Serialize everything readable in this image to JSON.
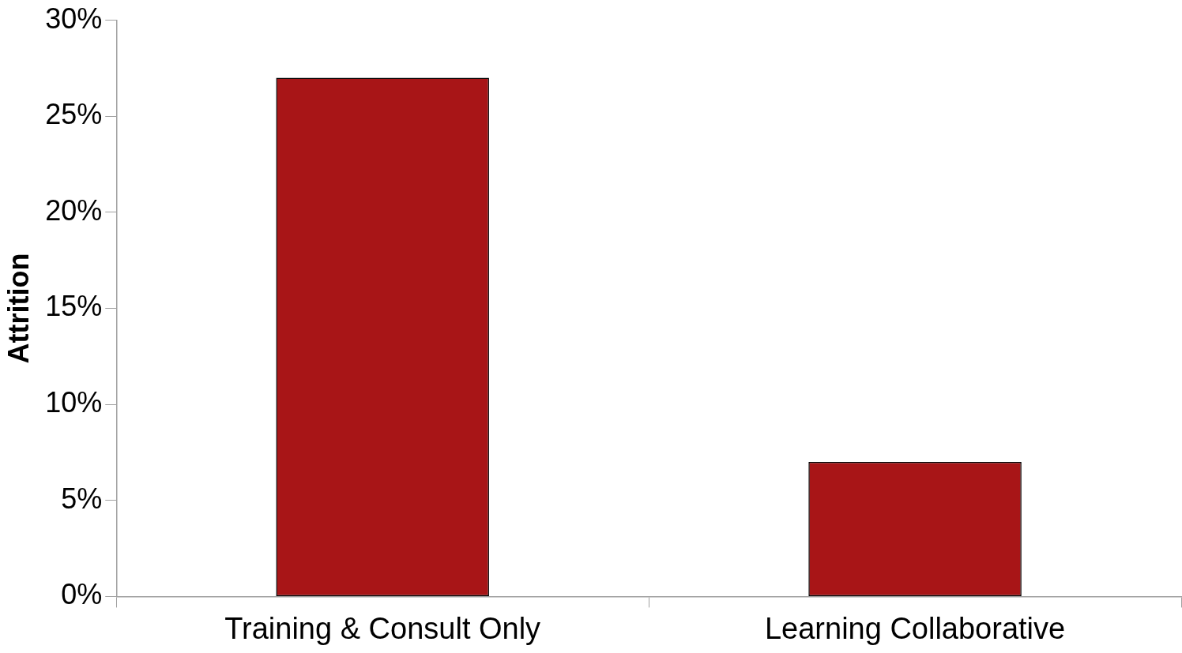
{
  "chart_data": {
    "type": "bar",
    "ylabel": "Attrition",
    "categories": [
      "Training & Consult Only",
      "Learning Collaborative"
    ],
    "values": [
      27,
      7
    ],
    "color": "#a81517",
    "ylim": [
      0,
      30
    ],
    "yticks": [
      {
        "value": 0,
        "label": "0%"
      },
      {
        "value": 5,
        "label": "5%"
      },
      {
        "value": 10,
        "label": "10%"
      },
      {
        "value": 15,
        "label": "15%"
      },
      {
        "value": 20,
        "label": "20%"
      },
      {
        "value": 25,
        "label": "25%"
      },
      {
        "value": 30,
        "label": "30%"
      }
    ],
    "grid": false,
    "legend": false
  }
}
